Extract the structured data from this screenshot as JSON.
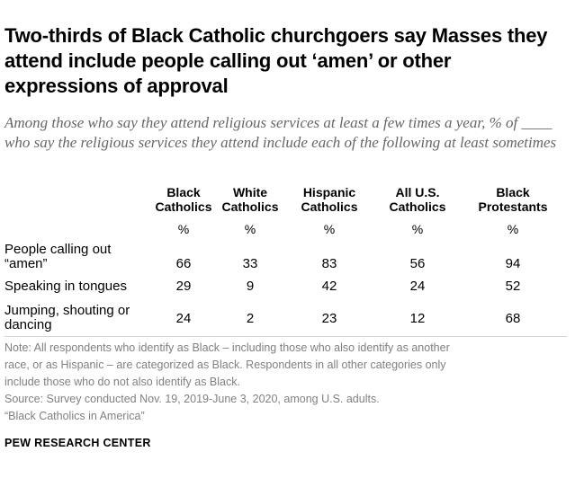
{
  "title": "Two-thirds of Black Catholic churchgoers say Masses they attend include people calling out ‘amen’ or other expressions of approval",
  "subtitle": "Among those who say they attend religious services at least a few times a year, % of ____ who say the religious services they attend include each of the following at least sometimes",
  "table": {
    "columns": [
      {
        "line1": "Black",
        "line2": "Catholics",
        "unit": "%"
      },
      {
        "line1": "White",
        "line2": "Catholics",
        "unit": "%"
      },
      {
        "line1": "Hispanic",
        "line2": "Catholics",
        "unit": "%"
      },
      {
        "line1": "All U.S.",
        "line2": "Catholics",
        "unit": "%"
      },
      {
        "line1": "Black",
        "line2": "Protestants",
        "unit": "%"
      }
    ],
    "rows": [
      {
        "line1": "People calling out",
        "line2": "“amen”",
        "values": [
          "66",
          "33",
          "83",
          "56",
          "94"
        ]
      },
      {
        "line1": "Speaking in tongues",
        "line2": "",
        "values": [
          "29",
          "9",
          "42",
          "24",
          "52"
        ]
      },
      {
        "line1": "Jumping, shouting or",
        "line2": "dancing",
        "values": [
          "24",
          "2",
          "23",
          "12",
          "68"
        ]
      }
    ]
  },
  "notes": {
    "line1": "Note: All respondents who identify as Black – including those who also identify as another",
    "line2": "race, or as Hispanic – are categorized as Black. Respondents in all other categories only",
    "line3": "include those who do not also identify as Black.",
    "line4": "Source: Survey conducted Nov. 19, 2019-June 3, 2020, among U.S. adults.",
    "line5": "“Black Catholics in America”"
  },
  "brand": "PEW RESEARCH CENTER"
}
